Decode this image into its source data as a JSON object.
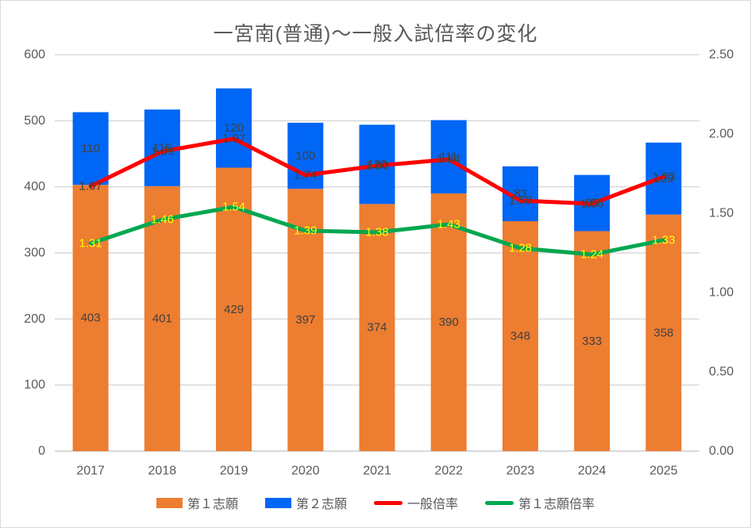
{
  "title": "一宮南(普通)～一般入試倍率の変化",
  "chart_data": {
    "type": "combo",
    "subtype": "stacked-bar with two overlay lines",
    "title": "一宮南(普通)～一般入試倍率の変化",
    "categories": [
      "2017",
      "2018",
      "2019",
      "2020",
      "2021",
      "2022",
      "2023",
      "2024",
      "2025"
    ],
    "series": [
      {
        "name": "第１志願",
        "kind": "bar",
        "stack": "applicants",
        "axis": "left",
        "color": "#ED7D31",
        "label_color": "#404040",
        "values": [
          403,
          401,
          429,
          397,
          374,
          390,
          348,
          333,
          358
        ]
      },
      {
        "name": "第２志願",
        "kind": "bar",
        "stack": "applicants",
        "axis": "left",
        "color": "#0066F5",
        "label_color": "#404040",
        "values": [
          110,
          116,
          120,
          100,
          120,
          111,
          83,
          85,
          109
        ]
      },
      {
        "name": "一般倍率",
        "kind": "line",
        "axis": "right",
        "color": "#FF0000",
        "label_color": "#404040",
        "label_decimals": 2,
        "values": [
          1.67,
          1.89,
          1.97,
          1.74,
          1.8,
          1.84,
          1.58,
          1.56,
          1.73
        ]
      },
      {
        "name": "第１志願倍率",
        "kind": "line",
        "axis": "right",
        "color": "#00A750",
        "label_color": "#FFFF00",
        "label_decimals": 2,
        "values": [
          1.31,
          1.46,
          1.54,
          1.39,
          1.38,
          1.43,
          1.28,
          1.24,
          1.33
        ]
      }
    ],
    "left_axis": {
      "min": 0,
      "max": 600,
      "tick_step": 100,
      "tick_labels": [
        "0",
        "100",
        "200",
        "300",
        "400",
        "500",
        "600"
      ]
    },
    "right_axis": {
      "min": 0,
      "max": 2.5,
      "tick_step": 0.5,
      "tick_labels": [
        "0.00",
        "0.50",
        "1.00",
        "1.50",
        "2.00",
        "2.50"
      ]
    },
    "grid": "horizontal gridlines on left-axis ticks",
    "legend_position": "bottom",
    "colors": {
      "grid": "#D9D9D9",
      "axis_text": "#595959",
      "title_text": "#595959"
    }
  }
}
